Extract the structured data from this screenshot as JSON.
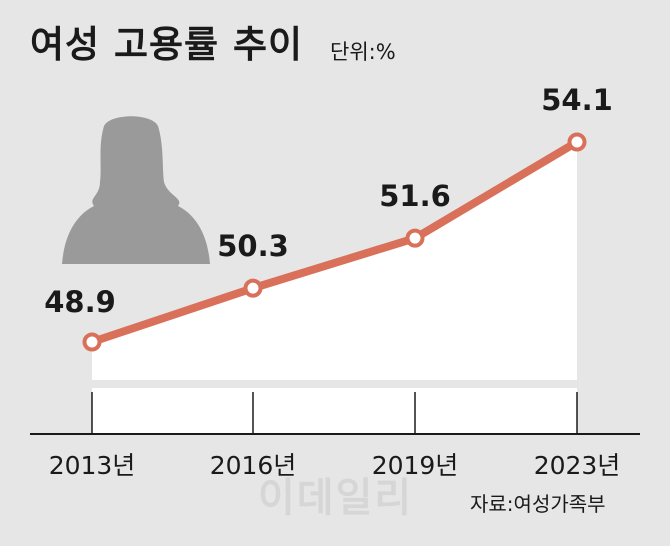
{
  "title": "여성 고용률 추이",
  "unit_label": "단위:%",
  "source": "자료:여성가족부",
  "watermark": "이데일리",
  "colors": {
    "line": "#d9705a",
    "background": "#e6e6e6",
    "area": "#ffffff",
    "silhouette": "#9a9a9a"
  },
  "icon": "woman-silhouette-icon",
  "chart_data": {
    "type": "line",
    "title": "여성 고용률 추이",
    "ylabel": "단위:%",
    "categories": [
      "2013년",
      "2016년",
      "2019년",
      "2023년"
    ],
    "values": [
      48.9,
      50.3,
      51.6,
      54.1
    ],
    "data_labels": [
      "48.9",
      "50.3",
      "51.6",
      "54.1"
    ],
    "grid": false,
    "legend": "none"
  }
}
